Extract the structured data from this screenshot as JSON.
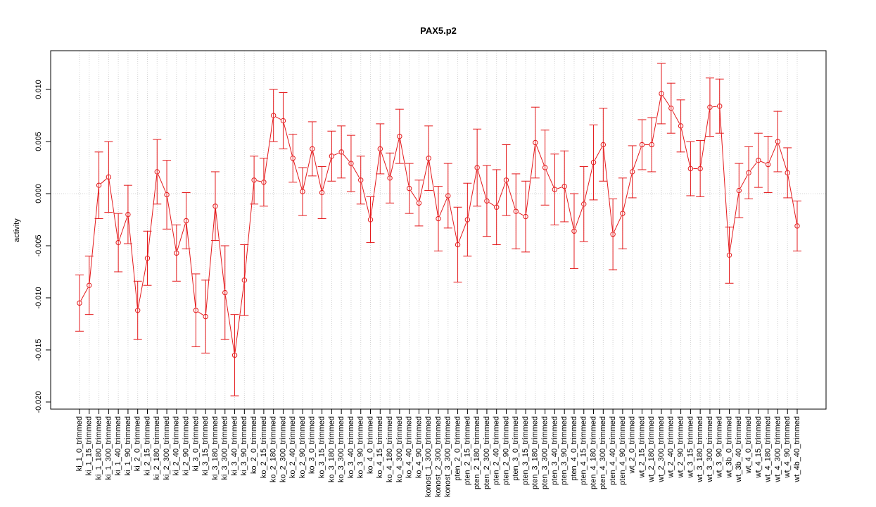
{
  "chart_data": {
    "type": "line",
    "title": "PAX5.p2",
    "y_label": "activity",
    "categories": [
      "ki_1_0_trimmed",
      "ki_1_15_trimmed",
      "ki_1_180_trimmed",
      "ki_1_300_trimmed",
      "ki_1_40_trimmed",
      "ki_1_90_trimmed",
      "ki_2_0_trimmed",
      "ki_2_15_trimmed",
      "ki_2_180_trimmed",
      "ki_2_300_trimmed",
      "ki_2_40_trimmed",
      "ki_2_90_trimmed",
      "ki_3_0_trimmed",
      "ki_3_15_trimmed",
      "ki_3_180_trimmed",
      "ki_3_300_trimmed",
      "ki_3_40_trimmed",
      "ki_3_90_trimmed",
      "ko_2_0_trimmed",
      "ko_2_15_trimmed",
      "ko_2_180_trimmed",
      "ko_2_300_trimmed",
      "ko_2_40_trimmed",
      "ko_2_90_trimmed",
      "ko_3_0_trimmed",
      "ko_3_15_trimmed",
      "ko_3_180_trimmed",
      "ko_3_300_trimmed",
      "ko_3_40_trimmed",
      "ko_3_90_trimmed",
      "ko_4_0_trimmed",
      "ko_4_15_trimmed",
      "ko_4_180_trimmed",
      "ko_4_300_trimmed",
      "ko_4_40_trimmed",
      "ko_4_90_trimmed",
      "konost_1_300_trimmed",
      "konost_2_300_trimmed",
      "konost_3_300_trimmed",
      "pten_2_0_trimmed",
      "pten_2_15_trimmed",
      "pten_2_180_trimmed",
      "pten_2_300_trimmed",
      "pten_2_40_trimmed",
      "pten_2_90_trimmed",
      "pten_3_0_trimmed",
      "pten_3_15_trimmed",
      "pten_3_180_trimmed",
      "pten_3_300_trimmed",
      "pten_3_40_trimmed",
      "pten_3_90_trimmed",
      "pten_4_0_trimmed",
      "pten_4_15_trimmed",
      "pten_4_180_trimmed",
      "pten_4_300_trimmed",
      "pten_4_40_trimmed",
      "pten_4_90_trimmed",
      "wt_2_0_trimmed",
      "wt_2_15_trimmed",
      "wt_2_180_trimmed",
      "wt_2_300_trimmed",
      "wt_2_40_trimmed",
      "wt_2_90_trimmed",
      "wt_3_15_trimmed",
      "wt_3_180_trimmed",
      "wt_3_300_trimmed",
      "wt_3_90_trimmed",
      "wt_3b_0_trimmed",
      "wt_3b_40_trimmed",
      "wt_4_0_trimmed",
      "wt_4_15_trimmed",
      "wt_4_180_trimmed",
      "wt_4_300_trimmed",
      "wt_4_90_trimmed",
      "wt_4b_40_trimmed"
    ],
    "series": [
      {
        "color": "#e41a1c",
        "values": [
          -0.0105,
          -0.0088,
          0.0008,
          0.0016,
          -0.0047,
          -0.002,
          -0.0112,
          -0.0062,
          0.0021,
          -0.0001,
          -0.0057,
          -0.0026,
          -0.0112,
          -0.0118,
          -0.0012,
          -0.0095,
          -0.0155,
          -0.0083,
          0.0013,
          0.0011,
          0.0075,
          0.007,
          0.0034,
          0.0002,
          0.0043,
          0.0001,
          0.0036,
          0.004,
          0.0029,
          0.0013,
          -0.0025,
          0.0043,
          0.0015,
          0.0055,
          0.0005,
          -0.0009,
          0.0034,
          -0.0024,
          -0.0002,
          -0.0049,
          -0.0025,
          0.0025,
          -0.0007,
          -0.0013,
          0.0013,
          -0.0017,
          -0.0022,
          0.0049,
          0.0025,
          0.0004,
          0.0007,
          -0.0036,
          -0.001,
          0.003,
          0.0047,
          -0.0039,
          -0.0019,
          0.0021,
          0.0047,
          0.0047,
          0.0096,
          0.0082,
          0.0065,
          0.0024,
          0.0024,
          0.0083,
          0.0084,
          -0.0059,
          0.0003,
          0.002,
          0.0032,
          0.0028,
          0.005,
          0.002,
          -0.0031
        ],
        "errors": [
          0.0027,
          0.0028,
          0.0032,
          0.0034,
          0.0028,
          0.0028,
          0.0028,
          0.0026,
          0.0031,
          0.0033,
          0.0027,
          0.0027,
          0.0035,
          0.0035,
          0.0033,
          0.0045,
          0.0039,
          0.0034,
          0.0023,
          0.0023,
          0.0025,
          0.0027,
          0.0023,
          0.0023,
          0.0026,
          0.0025,
          0.0024,
          0.0025,
          0.0027,
          0.0023,
          0.0022,
          0.0024,
          0.0024,
          0.0026,
          0.0024,
          0.0022,
          0.0031,
          0.0031,
          0.0031,
          0.0036,
          0.0035,
          0.0037,
          0.0034,
          0.0036,
          0.0034,
          0.0036,
          0.0034,
          0.0034,
          0.0036,
          0.0034,
          0.0034,
          0.0036,
          0.0036,
          0.0036,
          0.0035,
          0.0034,
          0.0034,
          0.0025,
          0.0024,
          0.0026,
          0.0029,
          0.0024,
          0.0025,
          0.0026,
          0.0027,
          0.0028,
          0.0026,
          0.0027,
          0.0026,
          0.0025,
          0.0026,
          0.0027,
          0.0029,
          0.0024,
          0.0024
        ]
      }
    ],
    "ylim": [
      -0.02068,
      0.01372
    ],
    "yticks": [
      {
        "value": -0.02,
        "label": "-0.020"
      },
      {
        "value": -0.015,
        "label": "-0.015"
      },
      {
        "value": -0.01,
        "label": "-0.010"
      },
      {
        "value": -0.005,
        "label": "-0.005"
      },
      {
        "value": 0,
        "label": "0.000"
      },
      {
        "value": 0.005,
        "label": "0.005"
      },
      {
        "value": 0.01,
        "label": "0.010"
      }
    ],
    "xgrid": true,
    "reference_line": 0
  }
}
